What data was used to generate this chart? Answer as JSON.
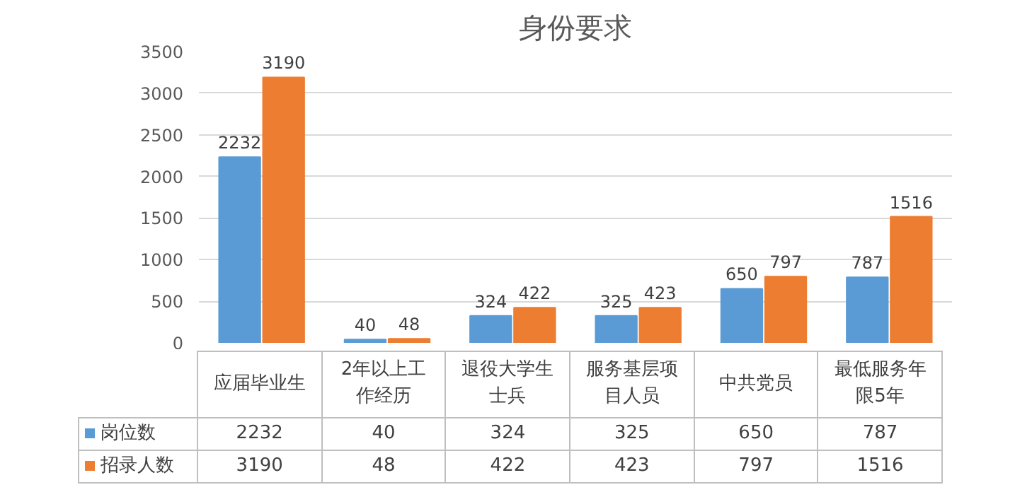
{
  "chart_data": {
    "type": "bar",
    "title": "身份要求",
    "categories": [
      "应届毕业生",
      "2年以上工作经历",
      "退役大学生士兵",
      "服务基层项目人员",
      "中共党员",
      "最低服务年限5年"
    ],
    "series": [
      {
        "name": "岗位数",
        "color": "#5b9bd5",
        "values": [
          2232,
          40,
          324,
          325,
          650,
          787
        ],
        "value_labels": [
          "2232",
          "40",
          "324",
          "325",
          "650",
          "787"
        ]
      },
      {
        "name": "招录人数",
        "color": "#ed7d31",
        "values": [
          3190,
          48,
          422,
          423,
          797,
          1516
        ],
        "value_labels": [
          "3190",
          "48",
          "422",
          "423",
          "797",
          "1516"
        ]
      }
    ],
    "ylim": [
      0,
      3500
    ],
    "yticks": [
      0,
      500,
      1000,
      1500,
      2000,
      2500,
      3000,
      3500
    ],
    "grid": "y",
    "data_labels": true,
    "legend": "bottom"
  }
}
